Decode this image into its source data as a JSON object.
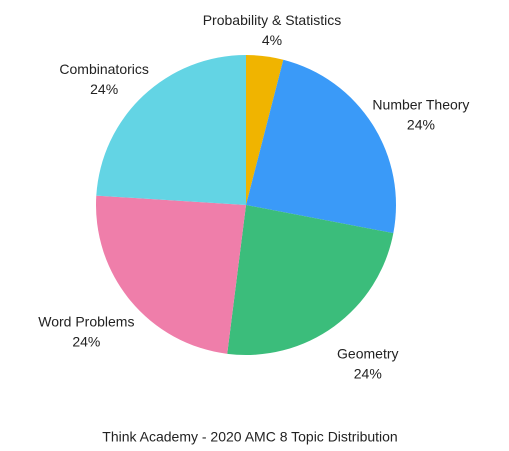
{
  "chart_data": {
    "type": "pie",
    "title": "Think Academy - 2020 AMC 8 Topic Distribution",
    "categories": [
      "Probability & Statistics",
      "Number Theory",
      "Geometry",
      "Word Problems",
      "Combinatorics"
    ],
    "values": [
      4,
      24,
      24,
      24,
      24
    ],
    "value_labels": [
      "4%",
      "24%",
      "24%",
      "24%",
      "24%"
    ],
    "colors": [
      "#f0b400",
      "#3a9af8",
      "#3bbd7b",
      "#ef7eaa",
      "#63d4e4"
    ]
  }
}
